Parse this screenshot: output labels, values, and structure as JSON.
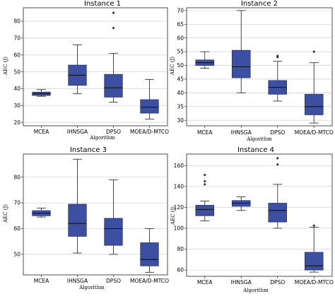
{
  "chart_data": [
    {
      "type": "box",
      "title": "Instance 1",
      "xlabel": "Algorithm",
      "ylabel": "AEC (J)",
      "ylim": [
        18,
        88
      ],
      "yticks": [
        20,
        30,
        40,
        50,
        60,
        70,
        80
      ],
      "grid": "horizontal",
      "color": "#3d4fa1",
      "categories": [
        "MCEA",
        "IHNSGA",
        "DPSO",
        "MOEA/D-MTCO"
      ],
      "boxes": [
        {
          "min": 35.5,
          "q1": 36.0,
          "median": 37.0,
          "q3": 38.0,
          "max": 39.5,
          "outliers": []
        },
        {
          "min": 37.0,
          "q1": 42.0,
          "median": 48.0,
          "q3": 54.0,
          "max": 66.0,
          "outliers": []
        },
        {
          "min": 32.0,
          "q1": 35.0,
          "median": 40.5,
          "q3": 48.5,
          "max": 61.0,
          "outliers": [
            76.0,
            85.0
          ]
        },
        {
          "min": 22.0,
          "q1": 25.5,
          "median": 29.0,
          "q3": 33.5,
          "max": 45.5,
          "outliers": []
        }
      ]
    },
    {
      "type": "box",
      "title": "Instance 2",
      "xlabel": "Algorithm",
      "ylabel": "AEC (J)",
      "ylim": [
        28,
        71
      ],
      "yticks": [
        30,
        35,
        40,
        45,
        50,
        55,
        60,
        65,
        70
      ],
      "grid": "horizontal",
      "color": "#3d4fa1",
      "categories": [
        "MCEA",
        "IHNSGA",
        "DPSO",
        "MOEA/D-MTCO"
      ],
      "boxes": [
        {
          "min": 49.0,
          "q1": 50.0,
          "median": 51.0,
          "q3": 52.0,
          "max": 55.0,
          "outliers": []
        },
        {
          "min": 40.0,
          "q1": 45.5,
          "median": 49.5,
          "q3": 55.5,
          "max": 70.0,
          "outliers": []
        },
        {
          "min": 37.0,
          "q1": 39.5,
          "median": 42.0,
          "q3": 44.5,
          "max": 51.5,
          "outliers": [
            53.0,
            53.5
          ]
        },
        {
          "min": 29.0,
          "q1": 32.0,
          "median": 35.0,
          "q3": 39.5,
          "max": 51.0,
          "outliers": [
            55.0
          ]
        }
      ]
    },
    {
      "type": "box",
      "title": "Instance 3",
      "xlabel": "Algorithm",
      "ylabel": "AEC (J)",
      "ylim": [
        42,
        89
      ],
      "yticks": [
        50,
        60,
        70,
        80
      ],
      "grid": "horizontal",
      "color": "#3d4fa1",
      "categories": [
        "MCEA",
        "IHNSGA",
        "DPSO",
        "MOEA/D-MTCO"
      ],
      "boxes": [
        {
          "min": 64.5,
          "q1": 65.0,
          "median": 66.0,
          "q3": 67.0,
          "max": 68.0,
          "outliers": []
        },
        {
          "min": 50.5,
          "q1": 57.0,
          "median": 62.0,
          "q3": 69.5,
          "max": 87.0,
          "outliers": []
        },
        {
          "min": 50.0,
          "q1": 53.5,
          "median": 60.0,
          "q3": 64.0,
          "max": 79.0,
          "outliers": []
        },
        {
          "min": 43.0,
          "q1": 45.5,
          "median": 48.0,
          "q3": 54.5,
          "max": 60.0,
          "outliers": []
        }
      ]
    },
    {
      "type": "box",
      "title": "Instance 4",
      "xlabel": "Algorithm",
      "ylabel": "AEC (J)",
      "ylim": [
        54,
        171
      ],
      "yticks": [
        60,
        80,
        100,
        120,
        140,
        160
      ],
      "grid": "horizontal",
      "color": "#3d4fa1",
      "categories": [
        "MCEA",
        "IHNSGA",
        "DPSO",
        "MOEA/D-MTCO"
      ],
      "boxes": [
        {
          "min": 107.0,
          "q1": 112.0,
          "median": 118.0,
          "q3": 122.0,
          "max": 126.0,
          "outliers": [
            142.0,
            145.0,
            151.0
          ]
        },
        {
          "min": 117.0,
          "q1": 121.0,
          "median": 124.0,
          "q3": 126.5,
          "max": 130.0,
          "outliers": []
        },
        {
          "min": 100.0,
          "q1": 106.0,
          "median": 117.0,
          "q3": 124.0,
          "max": 142.0,
          "outliers": [
            161.0,
            167.0
          ]
        },
        {
          "min": 58.0,
          "q1": 60.0,
          "median": 64.0,
          "q3": 77.0,
          "max": 101.0,
          "outliers": [
            102.5
          ]
        }
      ]
    }
  ]
}
